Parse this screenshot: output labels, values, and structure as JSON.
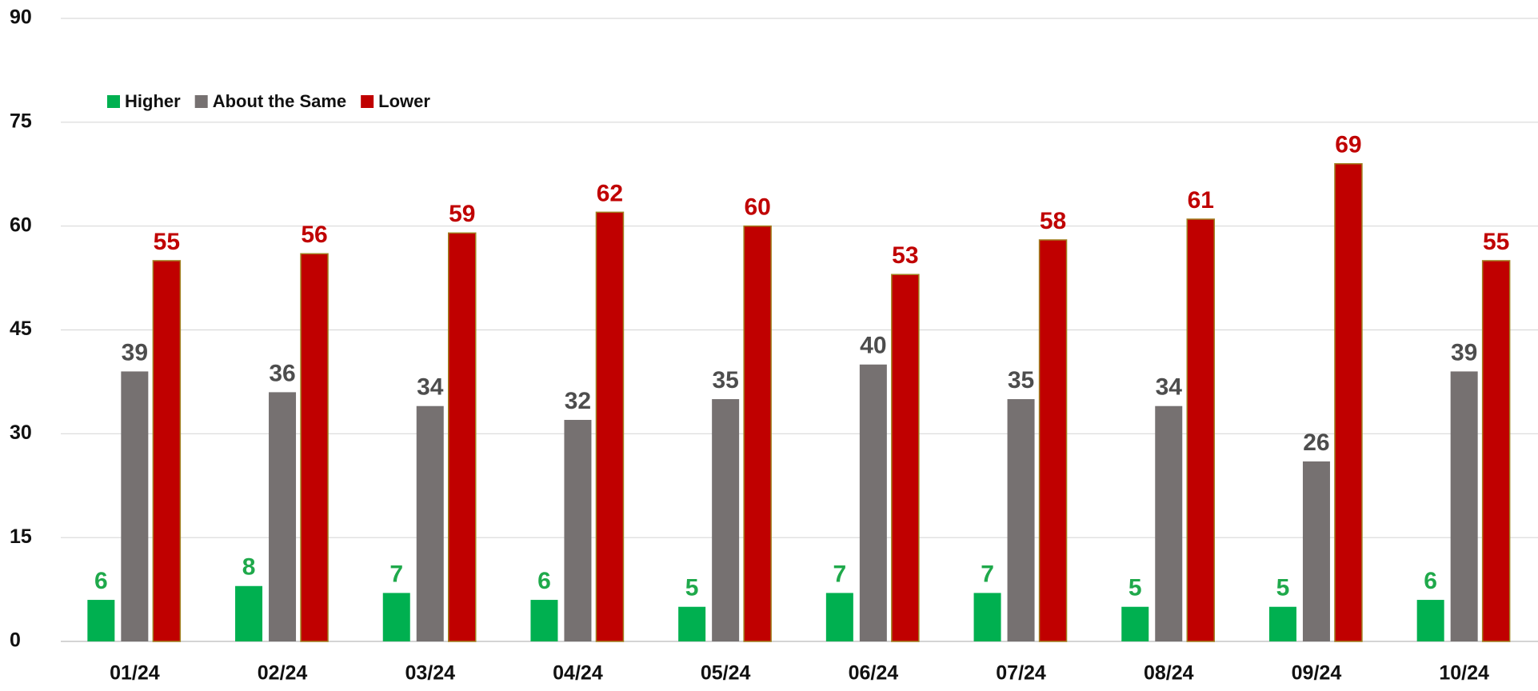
{
  "chart_data": {
    "type": "bar",
    "categories": [
      "01/24",
      "02/24",
      "03/24",
      "04/24",
      "05/24",
      "06/24",
      "07/24",
      "08/24",
      "09/24",
      "10/24"
    ],
    "series": [
      {
        "name": "Higher",
        "color": "#00b050",
        "label_color": "#1fa94b",
        "values": [
          6,
          8,
          7,
          6,
          5,
          7,
          7,
          5,
          5,
          6
        ]
      },
      {
        "name": "About the Same",
        "color": "#767171",
        "label_color": "#4d4d4d",
        "values": [
          39,
          36,
          34,
          32,
          35,
          40,
          35,
          34,
          26,
          39
        ]
      },
      {
        "name": "Lower",
        "color": "#c00000",
        "label_color": "#c00000",
        "values": [
          55,
          56,
          59,
          62,
          60,
          53,
          58,
          61,
          69,
          55
        ]
      }
    ],
    "ylim": [
      0,
      90
    ],
    "yticks": [
      0,
      15,
      30,
      45,
      60,
      75,
      90
    ],
    "grid": true,
    "legend": "top-left"
  }
}
